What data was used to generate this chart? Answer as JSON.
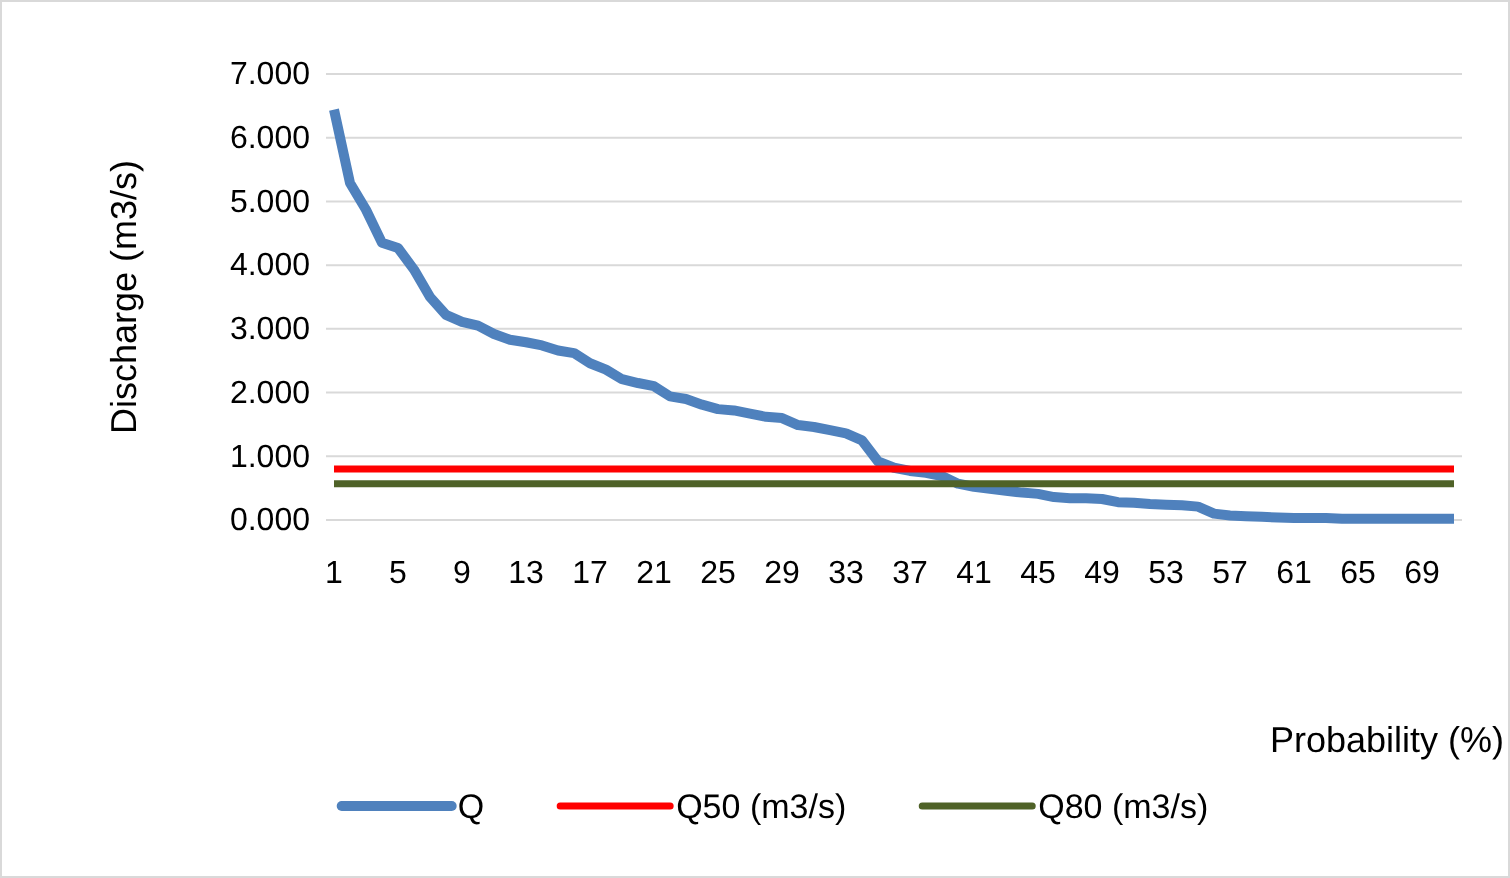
{
  "chart_data": {
    "type": "line",
    "categories": [
      "1",
      null,
      null,
      null,
      "5",
      null,
      null,
      null,
      "9",
      null,
      null,
      null,
      "13",
      null,
      null,
      null,
      "17",
      null,
      null,
      null,
      "21",
      null,
      null,
      null,
      "25",
      null,
      null,
      null,
      "29",
      null,
      null,
      null,
      "33",
      null,
      null,
      null,
      "37",
      null,
      null,
      null,
      "41",
      null,
      null,
      null,
      "45",
      null,
      null,
      null,
      "49",
      null,
      null,
      null,
      "53",
      null,
      null,
      null,
      "57",
      null,
      null,
      null,
      "61",
      null,
      null,
      null,
      "65",
      null,
      null,
      null,
      "69",
      null,
      null
    ],
    "xlabel": "Probability (%)",
    "ylabel": "Discharge (m3/s)",
    "ylim": [
      0,
      7
    ],
    "yticks": [
      {
        "value": 0,
        "label": "0.000"
      },
      {
        "value": 1,
        "label": "1.000"
      },
      {
        "value": 2,
        "label": "2.000"
      },
      {
        "value": 3,
        "label": "3.000"
      },
      {
        "value": 4,
        "label": "4.000"
      },
      {
        "value": 5,
        "label": "5.000"
      },
      {
        "value": 6,
        "label": "6.000"
      },
      {
        "value": 7,
        "label": "7.000"
      }
    ],
    "grid": "y",
    "legend": "bottom",
    "marker": "none",
    "line_style": "solid",
    "series": [
      {
        "name": "Q",
        "color": "#4f81bd",
        "values": [
          6.44,
          5.29,
          4.87,
          4.35,
          4.27,
          3.93,
          3.5,
          3.22,
          3.11,
          3.05,
          2.92,
          2.83,
          2.79,
          2.74,
          2.66,
          2.62,
          2.46,
          2.36,
          2.21,
          2.15,
          2.1,
          1.94,
          1.9,
          1.81,
          1.74,
          1.72,
          1.67,
          1.62,
          1.6,
          1.49,
          1.46,
          1.41,
          1.36,
          1.25,
          0.92,
          0.82,
          0.77,
          0.74,
          0.69,
          0.57,
          0.52,
          0.49,
          0.46,
          0.43,
          0.41,
          0.36,
          0.34,
          0.34,
          0.33,
          0.28,
          0.27,
          0.25,
          0.24,
          0.23,
          0.21,
          0.1,
          0.07,
          0.06,
          0.05,
          0.04,
          0.03,
          0.03,
          0.03,
          0.02,
          0.02,
          0.02,
          0.02,
          0.02,
          0.02,
          0.02,
          0.02
        ]
      },
      {
        "name": "Q50  (m3/s)",
        "color": "#ff0000",
        "values": [
          0.8,
          0.8,
          0.8,
          0.8,
          0.8,
          0.8,
          0.8,
          0.8,
          0.8,
          0.8,
          0.8,
          0.8,
          0.8,
          0.8,
          0.8,
          0.8,
          0.8,
          0.8,
          0.8,
          0.8,
          0.8,
          0.8,
          0.8,
          0.8,
          0.8,
          0.8,
          0.8,
          0.8,
          0.8,
          0.8,
          0.8,
          0.8,
          0.8,
          0.8,
          0.8,
          0.8,
          0.8,
          0.8,
          0.8,
          0.8,
          0.8,
          0.8,
          0.8,
          0.8,
          0.8,
          0.8,
          0.8,
          0.8,
          0.8,
          0.8,
          0.8,
          0.8,
          0.8,
          0.8,
          0.8,
          0.8,
          0.8,
          0.8,
          0.8,
          0.8,
          0.8,
          0.8,
          0.8,
          0.8,
          0.8,
          0.8,
          0.8,
          0.8,
          0.8,
          0.8,
          0.8
        ]
      },
      {
        "name": "Q80 (m3/s)",
        "color": "#4f6228",
        "values": [
          0.57,
          0.57,
          0.57,
          0.57,
          0.57,
          0.57,
          0.57,
          0.57,
          0.57,
          0.57,
          0.57,
          0.57,
          0.57,
          0.57,
          0.57,
          0.57,
          0.57,
          0.57,
          0.57,
          0.57,
          0.57,
          0.57,
          0.57,
          0.57,
          0.57,
          0.57,
          0.57,
          0.57,
          0.57,
          0.57,
          0.57,
          0.57,
          0.57,
          0.57,
          0.57,
          0.57,
          0.57,
          0.57,
          0.57,
          0.57,
          0.57,
          0.57,
          0.57,
          0.57,
          0.57,
          0.57,
          0.57,
          0.57,
          0.57,
          0.57,
          0.57,
          0.57,
          0.57,
          0.57,
          0.57,
          0.57,
          0.57,
          0.57,
          0.57,
          0.57,
          0.57,
          0.57,
          0.57,
          0.57,
          0.57,
          0.57,
          0.57,
          0.57,
          0.57,
          0.57,
          0.57
        ]
      }
    ]
  }
}
